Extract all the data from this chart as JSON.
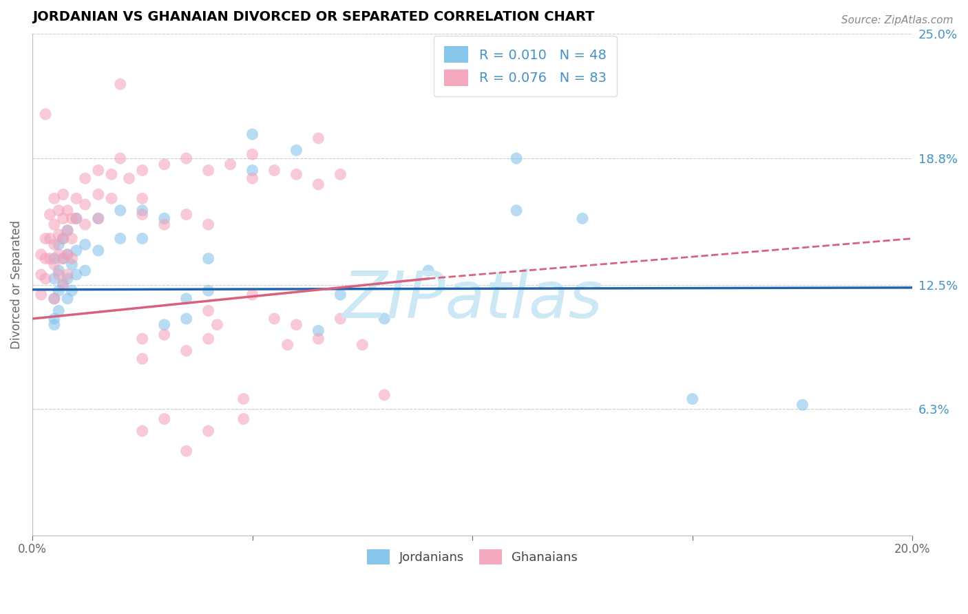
{
  "title": "JORDANIAN VS GHANAIAN DIVORCED OR SEPARATED CORRELATION CHART",
  "source_text": "Source: ZipAtlas.com",
  "ylabel": "Divorced or Separated",
  "legend_labels": [
    "Jordanians",
    "Ghanaians"
  ],
  "legend_r": [
    0.01,
    0.076
  ],
  "legend_n": [
    48,
    83
  ],
  "xlim": [
    0.0,
    0.2
  ],
  "ylim": [
    0.0,
    0.25
  ],
  "ytick_positions": [
    0.063,
    0.125,
    0.188,
    0.25
  ],
  "ytick_labels": [
    "6.3%",
    "12.5%",
    "18.8%",
    "25.0%"
  ],
  "xtick_positions": [
    0.0,
    0.05,
    0.1,
    0.15,
    0.2
  ],
  "xtick_labels": [
    "0.0%",
    "",
    "",
    "",
    "20.0%"
  ],
  "blue_color": "#7bbfe8",
  "pink_color": "#f4a0b8",
  "blue_line_color": "#2166ac",
  "pink_line_color": "#d9607e",
  "grid_color": "#cccccc",
  "right_label_color": "#4393c3",
  "watermark_color": "#cde8f5",
  "blue_points": [
    [
      0.005,
      0.138
    ],
    [
      0.005,
      0.128
    ],
    [
      0.005,
      0.118
    ],
    [
      0.005,
      0.108
    ],
    [
      0.006,
      0.145
    ],
    [
      0.006,
      0.132
    ],
    [
      0.006,
      0.122
    ],
    [
      0.007,
      0.148
    ],
    [
      0.007,
      0.138
    ],
    [
      0.007,
      0.125
    ],
    [
      0.008,
      0.152
    ],
    [
      0.008,
      0.14
    ],
    [
      0.008,
      0.128
    ],
    [
      0.009,
      0.135
    ],
    [
      0.009,
      0.122
    ],
    [
      0.01,
      0.158
    ],
    [
      0.01,
      0.142
    ],
    [
      0.01,
      0.13
    ],
    [
      0.012,
      0.145
    ],
    [
      0.012,
      0.132
    ],
    [
      0.015,
      0.158
    ],
    [
      0.015,
      0.142
    ],
    [
      0.02,
      0.162
    ],
    [
      0.02,
      0.148
    ],
    [
      0.025,
      0.162
    ],
    [
      0.025,
      0.148
    ],
    [
      0.03,
      0.158
    ],
    [
      0.03,
      0.105
    ],
    [
      0.035,
      0.118
    ],
    [
      0.035,
      0.108
    ],
    [
      0.04,
      0.138
    ],
    [
      0.04,
      0.122
    ],
    [
      0.05,
      0.2
    ],
    [
      0.05,
      0.182
    ],
    [
      0.06,
      0.192
    ],
    [
      0.065,
      0.102
    ],
    [
      0.07,
      0.12
    ],
    [
      0.08,
      0.108
    ],
    [
      0.09,
      0.132
    ],
    [
      0.11,
      0.162
    ],
    [
      0.11,
      0.188
    ],
    [
      0.125,
      0.158
    ],
    [
      0.15,
      0.068
    ],
    [
      0.175,
      0.065
    ],
    [
      0.005,
      0.105
    ],
    [
      0.006,
      0.112
    ],
    [
      0.008,
      0.118
    ]
  ],
  "pink_points": [
    [
      0.002,
      0.14
    ],
    [
      0.002,
      0.13
    ],
    [
      0.002,
      0.12
    ],
    [
      0.003,
      0.148
    ],
    [
      0.003,
      0.138
    ],
    [
      0.003,
      0.128
    ],
    [
      0.004,
      0.16
    ],
    [
      0.004,
      0.148
    ],
    [
      0.004,
      0.138
    ],
    [
      0.005,
      0.168
    ],
    [
      0.005,
      0.155
    ],
    [
      0.005,
      0.145
    ],
    [
      0.005,
      0.135
    ],
    [
      0.006,
      0.162
    ],
    [
      0.006,
      0.15
    ],
    [
      0.006,
      0.14
    ],
    [
      0.006,
      0.13
    ],
    [
      0.007,
      0.17
    ],
    [
      0.007,
      0.158
    ],
    [
      0.007,
      0.148
    ],
    [
      0.007,
      0.138
    ],
    [
      0.008,
      0.162
    ],
    [
      0.008,
      0.152
    ],
    [
      0.008,
      0.14
    ],
    [
      0.009,
      0.158
    ],
    [
      0.009,
      0.148
    ],
    [
      0.009,
      0.138
    ],
    [
      0.01,
      0.168
    ],
    [
      0.01,
      0.158
    ],
    [
      0.012,
      0.178
    ],
    [
      0.012,
      0.165
    ],
    [
      0.012,
      0.155
    ],
    [
      0.015,
      0.182
    ],
    [
      0.015,
      0.17
    ],
    [
      0.015,
      0.158
    ],
    [
      0.018,
      0.18
    ],
    [
      0.018,
      0.168
    ],
    [
      0.02,
      0.188
    ],
    [
      0.022,
      0.178
    ],
    [
      0.025,
      0.182
    ],
    [
      0.025,
      0.168
    ],
    [
      0.03,
      0.185
    ],
    [
      0.035,
      0.188
    ],
    [
      0.04,
      0.182
    ],
    [
      0.045,
      0.185
    ],
    [
      0.05,
      0.19
    ],
    [
      0.05,
      0.178
    ],
    [
      0.055,
      0.182
    ],
    [
      0.06,
      0.18
    ],
    [
      0.065,
      0.175
    ],
    [
      0.07,
      0.18
    ],
    [
      0.02,
      0.225
    ],
    [
      0.065,
      0.198
    ],
    [
      0.003,
      0.21
    ],
    [
      0.025,
      0.098
    ],
    [
      0.025,
      0.088
    ],
    [
      0.03,
      0.1
    ],
    [
      0.035,
      0.092
    ],
    [
      0.04,
      0.112
    ],
    [
      0.04,
      0.098
    ],
    [
      0.042,
      0.105
    ],
    [
      0.05,
      0.12
    ],
    [
      0.055,
      0.108
    ],
    [
      0.058,
      0.095
    ],
    [
      0.06,
      0.105
    ],
    [
      0.065,
      0.098
    ],
    [
      0.07,
      0.108
    ],
    [
      0.075,
      0.095
    ],
    [
      0.08,
      0.07
    ],
    [
      0.035,
      0.042
    ],
    [
      0.025,
      0.052
    ],
    [
      0.03,
      0.058
    ],
    [
      0.04,
      0.052
    ],
    [
      0.048,
      0.068
    ],
    [
      0.048,
      0.058
    ],
    [
      0.025,
      0.16
    ],
    [
      0.03,
      0.155
    ],
    [
      0.035,
      0.16
    ],
    [
      0.04,
      0.155
    ],
    [
      0.005,
      0.118
    ],
    [
      0.007,
      0.125
    ],
    [
      0.008,
      0.13
    ]
  ],
  "blue_trend": [
    0.0,
    0.1225,
    0.2,
    0.1235
  ],
  "pink_trend_solid": [
    0.0,
    0.108,
    0.09,
    0.128
  ],
  "pink_trend_dashed": [
    0.09,
    0.128,
    0.2,
    0.148
  ]
}
